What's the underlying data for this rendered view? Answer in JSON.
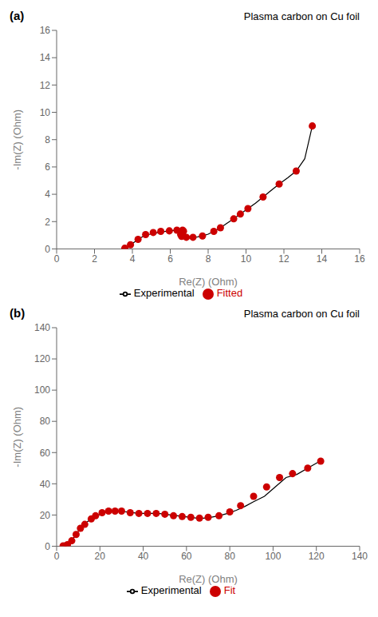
{
  "chart_data": [
    {
      "type": "line",
      "title": "Plasma carbon on Cu foil",
      "annotations": [
        "(a)"
      ],
      "xlabel": "Re(Z) (Ohm)",
      "ylabel": "-Im(Z) (Ohm)",
      "xlim": [
        0,
        16
      ],
      "ylim": [
        0,
        16
      ],
      "xticks": [
        0,
        2,
        4,
        6,
        8,
        10,
        12,
        14,
        16
      ],
      "yticks": [
        0,
        2,
        4,
        6,
        8,
        10,
        12,
        14,
        16
      ],
      "grid": false,
      "legend": "bottom",
      "series": [
        {
          "name": "Experimental",
          "type": "line",
          "color": "#000000",
          "x": [
            3.6,
            3.75,
            3.9,
            4.1,
            4.3,
            4.55,
            4.85,
            5.15,
            5.45,
            5.7,
            5.95,
            6.15,
            6.35,
            6.5,
            6.6,
            6.65,
            6.7,
            6.7,
            6.65,
            6.6,
            6.55,
            6.55,
            6.6,
            6.7,
            6.85,
            7.0,
            7.2,
            7.45,
            7.7,
            8.0,
            8.3,
            8.65,
            9.0,
            9.35,
            9.7,
            10.1,
            10.5,
            10.9,
            11.3,
            11.75,
            12.2,
            12.65,
            13.1,
            13.5
          ],
          "values": [
            0.05,
            0.15,
            0.3,
            0.5,
            0.7,
            0.9,
            1.05,
            1.15,
            1.22,
            1.28,
            1.32,
            1.35,
            1.37,
            1.38,
            1.38,
            1.37,
            1.35,
            1.3,
            1.25,
            1.2,
            1.12,
            1.05,
            0.98,
            0.92,
            0.88,
            0.85,
            0.85,
            0.88,
            0.95,
            1.08,
            1.28,
            1.55,
            1.88,
            2.2,
            2.55,
            2.95,
            3.35,
            3.8,
            4.25,
            4.75,
            5.2,
            5.7,
            6.6,
            9.0
          ]
        },
        {
          "name": "Fitted",
          "type": "scatter",
          "color": "#cc0000",
          "x": [
            3.6,
            3.9,
            4.3,
            4.7,
            5.1,
            5.5,
            5.95,
            6.35,
            6.65,
            6.7,
            6.65,
            6.55,
            6.6,
            6.85,
            7.2,
            7.7,
            8.3,
            8.65,
            9.35,
            9.7,
            10.1,
            10.9,
            11.75,
            12.65,
            13.5
          ],
          "values": [
            0.05,
            0.3,
            0.7,
            1.05,
            1.2,
            1.28,
            1.32,
            1.37,
            1.37,
            1.3,
            1.2,
            1.05,
            0.92,
            0.85,
            0.85,
            0.95,
            1.28,
            1.55,
            2.2,
            2.55,
            2.95,
            3.8,
            4.75,
            5.7,
            9.0
          ]
        }
      ]
    },
    {
      "type": "line",
      "title": "Plasma carbon on Cu foil",
      "annotations": [
        "(b)"
      ],
      "xlabel": "Re(Z) (Ohm)",
      "ylabel": "-Im(Z) (Ohm)",
      "xlim": [
        0,
        140
      ],
      "ylim": [
        0,
        140
      ],
      "xticks": [
        0,
        20,
        40,
        60,
        80,
        100,
        120,
        140
      ],
      "yticks": [
        0,
        20,
        40,
        60,
        80,
        100,
        120,
        140
      ],
      "grid": false,
      "legend": "bottom",
      "series": [
        {
          "name": "Experimental",
          "type": "line",
          "color": "#000000",
          "x": [
            3,
            4,
            5,
            6,
            7,
            8,
            9,
            10,
            11,
            12,
            14,
            16,
            18,
            20,
            22,
            24,
            26,
            28,
            30,
            32,
            35,
            38,
            41,
            44,
            47,
            50,
            53,
            56,
            59,
            62,
            65,
            68,
            71,
            75,
            79,
            83,
            87,
            91,
            96,
            101,
            106,
            111,
            116,
            121
          ],
          "values": [
            0.2,
            0.5,
            1.0,
            2.0,
            3.5,
            5.5,
            7.5,
            9.5,
            11.5,
            13.0,
            15.5,
            17.5,
            19.0,
            20.5,
            21.5,
            22.0,
            22.5,
            22.5,
            22.5,
            22.0,
            21.5,
            21.0,
            21.0,
            21.0,
            21.0,
            20.5,
            20.0,
            19.5,
            19.0,
            18.5,
            18.0,
            18.0,
            18.5,
            19.5,
            21.0,
            23.0,
            25.5,
            28.5,
            32.0,
            38.0,
            44.0,
            46.0,
            50.0,
            54.0
          ]
        },
        {
          "name": "Fit",
          "type": "scatter",
          "color": "#cc0000",
          "x": [
            3,
            5,
            7,
            9,
            11,
            13,
            16,
            18,
            21,
            24,
            27,
            30,
            34,
            38,
            42,
            46,
            50,
            54,
            58,
            62,
            66,
            70,
            75,
            80,
            85,
            91,
            97,
            103,
            109,
            116,
            122
          ],
          "values": [
            0.2,
            1.0,
            3.5,
            7.5,
            11.5,
            14.0,
            17.5,
            19.5,
            21.5,
            22.5,
            22.5,
            22.5,
            21.5,
            21.0,
            21.0,
            21.0,
            20.5,
            19.5,
            19.0,
            18.5,
            18.0,
            18.5,
            19.5,
            22.0,
            26.0,
            32.0,
            38.0,
            44.0,
            46.5,
            50.0,
            54.5
          ]
        }
      ]
    }
  ]
}
